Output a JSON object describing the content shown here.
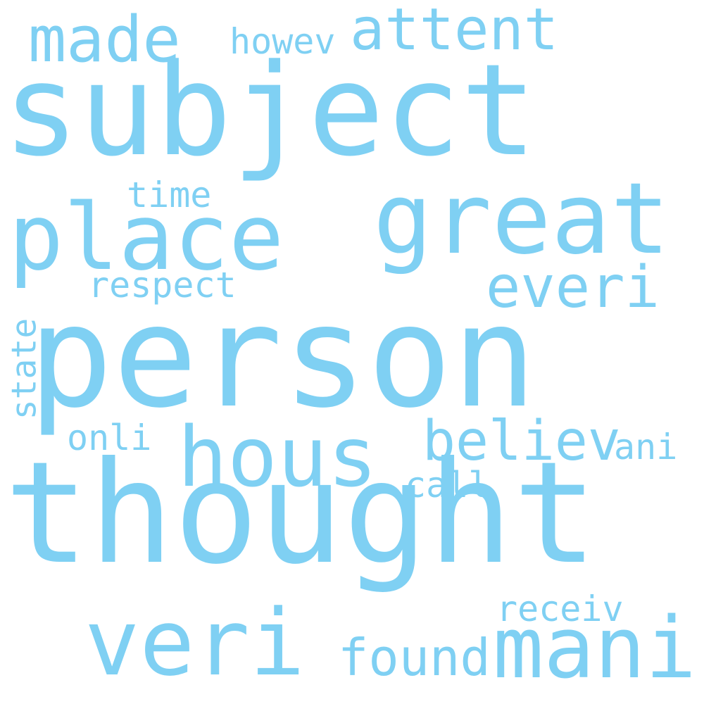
{
  "colors": {
    "word": "#7fd0f3",
    "background": "#ffffff"
  },
  "words": {
    "subject": "subject",
    "person": "person",
    "thought": "thought",
    "great": "great",
    "place": "place",
    "made": "made",
    "attent": "attent",
    "howev": "howev",
    "time": "time",
    "everi": "everi",
    "respect": "respect",
    "state": "state",
    "hous": "hous",
    "believ": "believ",
    "onli": "onli",
    "ani": "ani",
    "call": "call",
    "veri": "veri",
    "mani": "mani",
    "found": "found",
    "receiv": "receiv"
  }
}
